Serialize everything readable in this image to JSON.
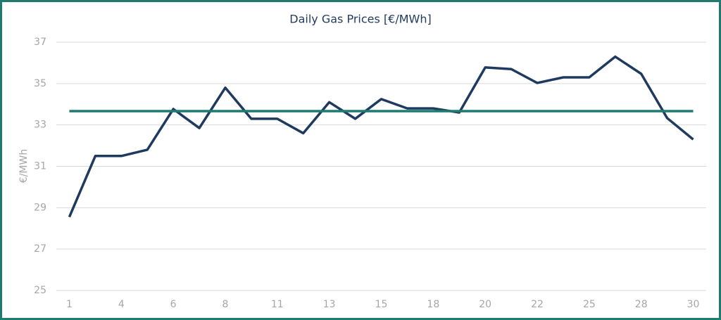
{
  "chart_data": {
    "type": "line",
    "title": "Daily Gas Prices [€/MWh]",
    "y_label": "€/MWh",
    "categories": [
      "1",
      null,
      "4",
      null,
      "6",
      null,
      "8",
      null,
      "11",
      null,
      "13",
      null,
      "15",
      null,
      "18",
      null,
      "20",
      null,
      "22",
      null,
      "25",
      null,
      "28",
      null,
      "30"
    ],
    "series": [
      {
        "color": "#1f3a5f",
        "values": [
          28.55,
          31.5,
          31.5,
          31.8,
          33.77,
          32.85,
          34.8,
          33.3,
          33.3,
          32.6,
          34.1,
          33.3,
          34.25,
          33.8,
          33.8,
          33.6,
          35.78,
          35.7,
          35.03,
          35.3,
          35.3,
          36.3,
          35.47,
          33.33,
          32.3
        ]
      }
    ],
    "average_line": {
      "value": 33.67,
      "color": "#1f7a70"
    },
    "ylim": [
      25,
      37
    ],
    "yticks": [
      25,
      27,
      29,
      31,
      33,
      35,
      37
    ],
    "grid": true
  }
}
